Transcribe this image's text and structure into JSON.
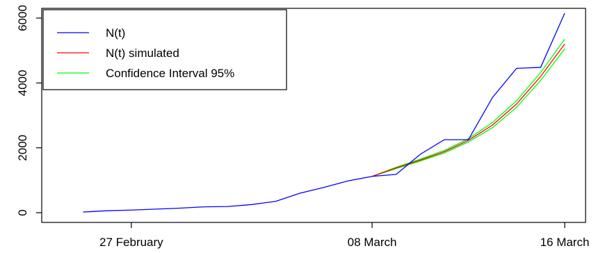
{
  "chart_data": {
    "type": "line",
    "title": "",
    "xlabel": "",
    "ylabel": "",
    "x_tick_labels": [
      "27 February",
      "08 March",
      "16 March"
    ],
    "y_tick_labels": [
      "0",
      "2000",
      "4000",
      "6000"
    ],
    "y_ticks": [
      0,
      2000,
      4000,
      6000
    ],
    "ylim": [
      -300,
      6300
    ],
    "xlim": [
      "2020-02-24",
      "2020-03-16"
    ],
    "grid": false,
    "legend_position": "top-left",
    "series": [
      {
        "name": "N(t)",
        "color": "#0000ff",
        "x": [
          "2020-02-25",
          "2020-02-26",
          "2020-02-27",
          "2020-02-28",
          "2020-02-29",
          "2020-03-01",
          "2020-03-02",
          "2020-03-03",
          "2020-03-04",
          "2020-03-05",
          "2020-03-06",
          "2020-03-07",
          "2020-03-08",
          "2020-03-09",
          "2020-03-10",
          "2020-03-11",
          "2020-03-12",
          "2020-03-13",
          "2020-03-14",
          "2020-03-15",
          "2020-03-16"
        ],
        "values": [
          20,
          60,
          80,
          110,
          140,
          180,
          190,
          250,
          350,
          600,
          780,
          980,
          1120,
          1180,
          1800,
          2250,
          2250,
          3550,
          4450,
          4480,
          6150
        ]
      },
      {
        "name": "N(t) simulated",
        "color": "#ff0000",
        "x": [
          "2020-03-08",
          "2020-03-09",
          "2020-03-10",
          "2020-03-11",
          "2020-03-12",
          "2020-03-13",
          "2020-03-14",
          "2020-03-15",
          "2020-03-16"
        ],
        "values": [
          1120,
          1380,
          1620,
          1880,
          2230,
          2700,
          3350,
          4200,
          5200
        ]
      },
      {
        "name": "Confidence Interval 95%",
        "color": "#00ff00",
        "x": [
          "2020-03-08",
          "2020-03-09",
          "2020-03-10",
          "2020-03-11",
          "2020-03-12",
          "2020-03-13",
          "2020-03-14",
          "2020-03-15",
          "2020-03-16"
        ],
        "values": [
          1120,
          1400,
          1650,
          1920,
          2280,
          2780,
          3450,
          4320,
          5350
        ],
        "lower": [
          1120,
          1360,
          1590,
          1840,
          2180,
          2620,
          3250,
          4080,
          5050
        ]
      }
    ]
  }
}
